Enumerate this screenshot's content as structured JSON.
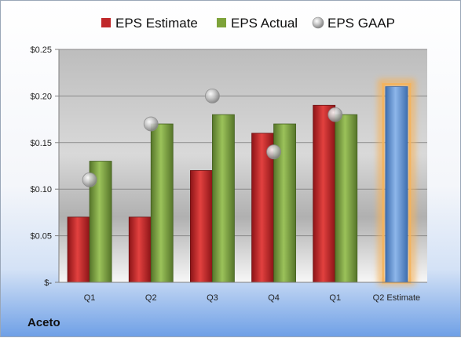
{
  "company": "Aceto",
  "chart_data": {
    "type": "bar",
    "categories": [
      "Q1",
      "Q2",
      "Q3",
      "Q4",
      "Q1",
      "Q2 Estimate"
    ],
    "yticks": [
      "$-",
      "$0.05",
      "$0.10",
      "$0.15",
      "$0.20",
      "$0.25"
    ],
    "ylim": [
      0,
      0.25
    ],
    "ytick_step": 0.05,
    "legend_position": "top",
    "grid": true,
    "series": [
      {
        "name": "EPS Estimate",
        "kind": "bar",
        "color": "#c0282a",
        "values": [
          0.07,
          0.07,
          0.12,
          0.16,
          0.19,
          null
        ]
      },
      {
        "name": "EPS Actual",
        "kind": "bar",
        "color": "#7ea33a",
        "values": [
          0.13,
          0.17,
          0.18,
          0.17,
          0.18,
          null
        ]
      },
      {
        "name": "EPS GAAP",
        "kind": "marker",
        "color": "#a6a6a6",
        "values": [
          0.11,
          0.17,
          0.2,
          0.14,
          0.18,
          null
        ]
      },
      {
        "name": "Q2 Estimate",
        "kind": "bar-highlight",
        "color": "#6b9ad6",
        "glow": "#f5b25a",
        "values": [
          null,
          null,
          null,
          null,
          null,
          0.21
        ]
      }
    ]
  }
}
